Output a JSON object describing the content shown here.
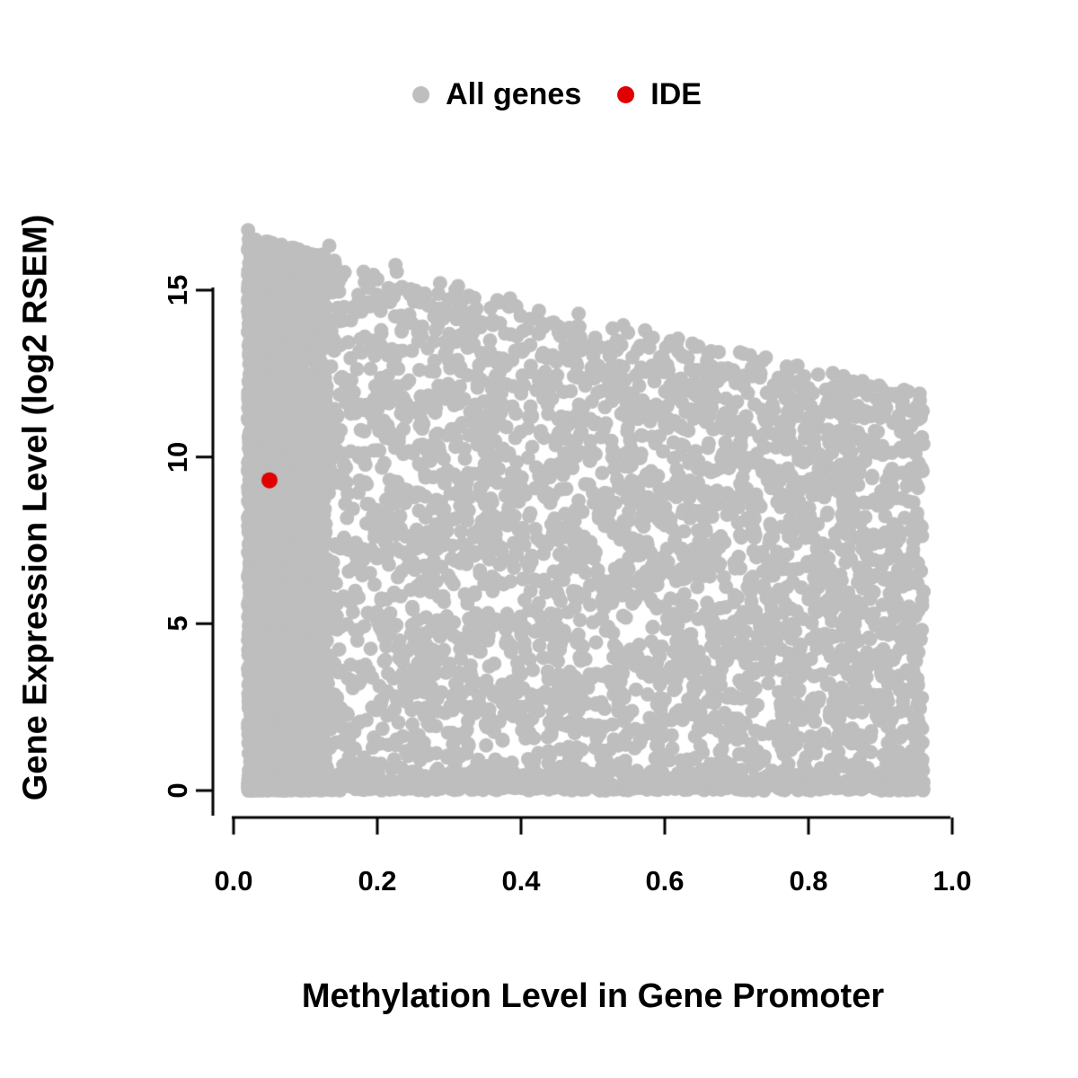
{
  "chart_data": {
    "type": "scatter",
    "title": "",
    "xlabel": "Methylation Level in Gene Promoter",
    "ylabel": "Gene Expression Level (log2 RSEM)",
    "xlim": [
      0,
      1
    ],
    "ylim": [
      0,
      17.2
    ],
    "grid": false,
    "legend_position": "top-center",
    "x_ticks": {
      "values": [
        0.0,
        0.2,
        0.4,
        0.6,
        0.8,
        1.0
      ],
      "labels": [
        "0.0",
        "0.2",
        "0.4",
        "0.6",
        "0.8",
        "1.0"
      ]
    },
    "y_ticks": {
      "values": [
        0,
        5,
        10,
        15
      ],
      "labels": [
        "0",
        "5",
        "10",
        "15"
      ]
    },
    "legend": [
      {
        "label": "All genes",
        "color": "#bebebe"
      },
      {
        "label": "IDE",
        "color": "#e00000"
      }
    ],
    "series": [
      {
        "name": "All genes",
        "color": "#bebebe",
        "marker_radius_px": 8,
        "type": "generated_cloud",
        "n": 7500,
        "seed": 42,
        "x_range": [
          0.02,
          0.96
        ],
        "left_band": {
          "probability": 0.42,
          "width": 0.11,
          "exponent": 1.3
        },
        "spread_exponent": 0.95,
        "upper_envelope": {
          "intercept": 16.7,
          "slope": -5.0
        },
        "bottom_band": {
          "probability": 0.14,
          "sigma": 0.25
        },
        "vertical_exponent": 1.05,
        "outlier_probability": 0.002,
        "description": "Dense gray cloud of ~thousands of genes; expression spans 0 to ~16.7 log2 RSEM at low methylation, upper envelope declining to ~11.8 at methylation ~0.96; very dense vertical band at methylation < 0.13 and dense row along expression = 0."
      },
      {
        "name": "IDE",
        "color": "#e00000",
        "marker_radius_px": 9,
        "points": [
          [
            0.05,
            9.3
          ]
        ]
      }
    ]
  }
}
